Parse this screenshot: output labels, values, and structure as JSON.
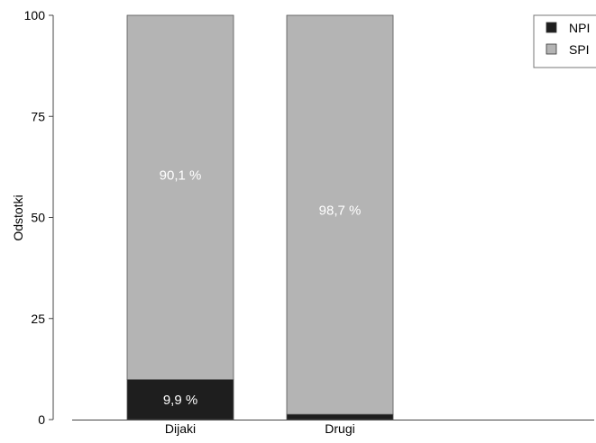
{
  "chart_data": {
    "type": "bar",
    "stacked": true,
    "categories": [
      "Dijaki",
      "Drugi"
    ],
    "series": [
      {
        "name": "NPI",
        "values": [
          9.9,
          1.3
        ],
        "color": "#1e1e1e"
      },
      {
        "name": "SPI",
        "values": [
          90.1,
          98.7
        ],
        "color": "#b4b4b4"
      }
    ],
    "data_labels": [
      {
        "category": "Dijaki",
        "series": "NPI",
        "text": "9,9 %"
      },
      {
        "category": "Dijaki",
        "series": "SPI",
        "text": "90,1 %"
      },
      {
        "category": "Drugi",
        "series": "SPI",
        "text": "98,7 %"
      }
    ],
    "ylabel": "Odstotki",
    "xlabel": "",
    "ylim": [
      0,
      100
    ],
    "yticks": [
      "0",
      "25",
      "50",
      "75",
      "100"
    ],
    "legend": "top-right",
    "grid": false
  }
}
